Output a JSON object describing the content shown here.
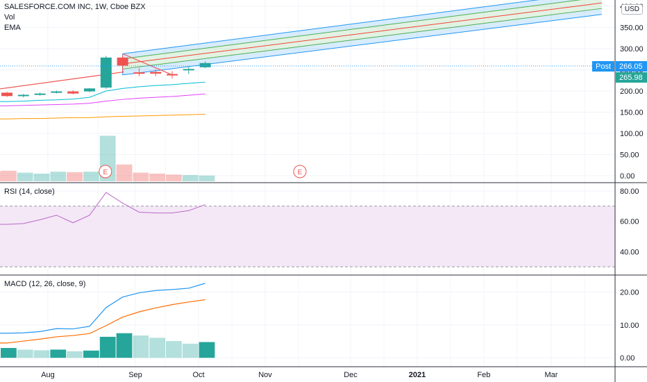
{
  "header": {
    "symbol_line": "SALESFORCE.COM INC, 1W, Cboe BZX",
    "vol_label": "Vol",
    "ema_label": "EMA",
    "currency": "USD"
  },
  "rsi_label": "RSI (14, close)",
  "macd_label": "MACD (12, 26, close, 9)",
  "badges": {
    "post_label": "Post",
    "post_value": "266.05",
    "last_value": "265.98"
  },
  "earnings_marker": "E",
  "colors": {
    "up": "#26a69a",
    "down": "#ef5350",
    "channel_blue": "#2196f3",
    "channel_green": "#4caf50",
    "channel_mid": "#f44336",
    "ema_fast": "#00bcd4",
    "ema_mid": "#e040fb",
    "ema_slow": "#ff9800",
    "rsi_line": "#ba68c8",
    "rsi_band": "#f3e5f5",
    "macd_line": "#2196f3",
    "signal_line": "#ff6d00",
    "post_badge": "#2196f3",
    "last_badge": "#26a69a"
  },
  "chart_data": {
    "type": "candlestick",
    "x_ticks": [
      "Aug",
      "Sep",
      "Oct",
      "Nov",
      "Dec",
      "2021",
      "Feb",
      "Mar"
    ],
    "price_axis": {
      "ticks": [
        "0.00",
        "50.00",
        "100.00",
        "150.00",
        "200.00",
        "250.00",
        "300.00",
        "350.00",
        "400.00"
      ],
      "range": [
        -15,
        415
      ]
    },
    "candles": [
      {
        "o": 196,
        "h": 198,
        "l": 186,
        "c": 188
      },
      {
        "o": 188,
        "h": 193,
        "l": 185,
        "c": 191
      },
      {
        "o": 191,
        "h": 196,
        "l": 189,
        "c": 194
      },
      {
        "o": 196,
        "h": 201,
        "l": 194,
        "c": 199
      },
      {
        "o": 199,
        "h": 202,
        "l": 192,
        "c": 194
      },
      {
        "o": 199,
        "h": 207,
        "l": 197,
        "c": 206
      },
      {
        "o": 208,
        "h": 283,
        "l": 205,
        "c": 279
      },
      {
        "o": 279,
        "h": 284,
        "l": 246,
        "c": 260
      },
      {
        "o": 244,
        "h": 254,
        "l": 235,
        "c": 242
      },
      {
        "o": 245,
        "h": 251,
        "l": 235,
        "c": 241
      },
      {
        "o": 240,
        "h": 247,
        "l": 230,
        "c": 238
      },
      {
        "o": 249,
        "h": 258,
        "l": 240,
        "c": 252
      },
      {
        "o": 256,
        "h": 270,
        "l": 254,
        "c": 266
      }
    ],
    "volume": [
      22,
      18,
      16,
      20,
      19,
      20,
      95,
      35,
      18,
      16,
      14,
      13,
      12
    ],
    "ema_fast": [
      175,
      176,
      178,
      179,
      181,
      185,
      200,
      206,
      210,
      213,
      215,
      218,
      221
    ],
    "ema_mid": [
      165,
      166,
      167,
      168,
      169,
      171,
      176,
      180,
      183,
      185,
      187,
      190,
      193
    ],
    "ema_slow": [
      134,
      135,
      135,
      136,
      137,
      137,
      139,
      140,
      141,
      142,
      143,
      144,
      145
    ],
    "trendline": {
      "from": [
        0,
        205
      ],
      "to": [
        7,
        245
      ]
    },
    "channel": {
      "start_index": 7,
      "end_index": 36,
      "upper_outer": [
        288,
        435
      ],
      "upper_inner": [
        276,
        422
      ],
      "mid": [
        264,
        408
      ],
      "lower_inner": [
        252,
        395
      ],
      "lower_outer": [
        238,
        381
      ]
    },
    "earnings_indices": [
      6,
      19
    ],
    "rsi": {
      "ticks": [
        "40.00",
        "60.00",
        "80.00"
      ],
      "range": [
        25,
        85
      ],
      "upper_band": 70,
      "lower_band": 30,
      "values": [
        58,
        58.5,
        61,
        64,
        59,
        64,
        79,
        72,
        66,
        65.5,
        65.5,
        67,
        71
      ]
    },
    "macd": {
      "ticks": [
        "0.00",
        "10.00",
        "20.00"
      ],
      "range": [
        -2.5,
        25
      ],
      "macd": [
        7.5,
        7.6,
        8.0,
        8.9,
        8.8,
        9.6,
        15.3,
        18.5,
        19.8,
        20.5,
        20.8,
        21.2,
        22.7
      ],
      "signal": [
        4.5,
        5.1,
        5.7,
        6.4,
        6.8,
        7.4,
        9.8,
        12.4,
        14.0,
        15.2,
        16.2,
        17.0,
        17.7
      ],
      "hist": [
        3.0,
        2.5,
        2.3,
        2.5,
        2.0,
        2.2,
        6.4,
        7.5,
        6.8,
        6.1,
        5.1,
        4.3,
        4.8
      ]
    }
  }
}
